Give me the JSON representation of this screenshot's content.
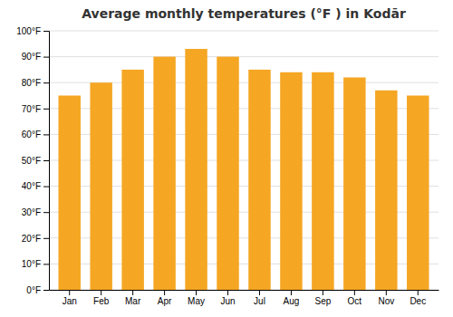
{
  "chart_data": {
    "type": "bar",
    "title": "Average monthly temperatures (°F ) in Kodār",
    "categories": [
      "Jan",
      "Feb",
      "Mar",
      "Apr",
      "May",
      "Jun",
      "Jul",
      "Aug",
      "Sep",
      "Oct",
      "Nov",
      "Dec"
    ],
    "values": [
      75,
      80,
      85,
      90,
      93,
      90,
      85,
      84,
      84,
      82,
      77,
      75
    ],
    "color": "#F5A623",
    "ylim": [
      0,
      100
    ],
    "yticks": [
      {
        "value": 0,
        "label": "0°F"
      },
      {
        "value": 10,
        "label": "10°F"
      },
      {
        "value": 20,
        "label": "20°F"
      },
      {
        "value": 30,
        "label": "30°F"
      },
      {
        "value": 40,
        "label": "40°F"
      },
      {
        "value": 50,
        "label": "50°F"
      },
      {
        "value": 60,
        "label": "60°F"
      },
      {
        "value": 70,
        "label": "70°F"
      },
      {
        "value": 80,
        "label": "80°F"
      },
      {
        "value": 90,
        "label": "90°F"
      },
      {
        "value": 100,
        "label": "100°F"
      }
    ],
    "grid": true
  }
}
